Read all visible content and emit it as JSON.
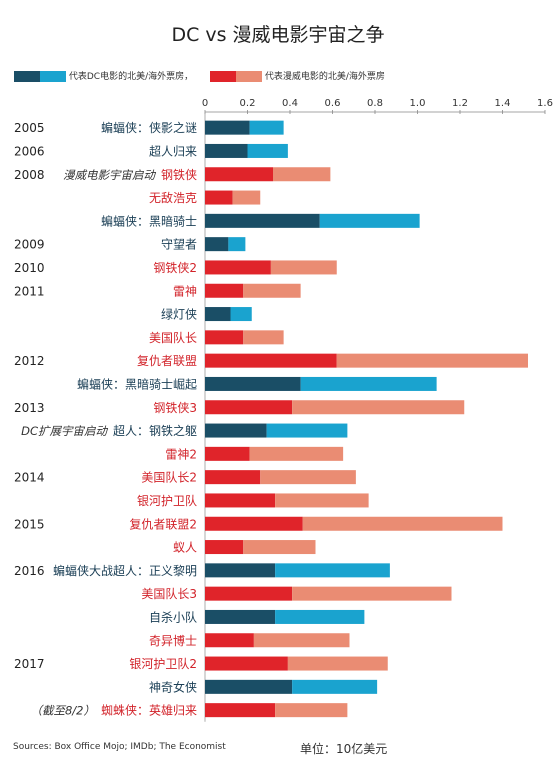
{
  "chart_data": {
    "type": "bar",
    "title": "DC vs 漫威电影宇宙之争",
    "unit": "单位：10亿美元",
    "source": "Sources: Box Office Mojo; IMDb; The Economist",
    "xlim": [
      0,
      1.6
    ],
    "xticks": [
      "0",
      "0.2",
      "0.4",
      "0.6",
      "0.8",
      "1.0",
      "1.2",
      "1.4",
      "1.6"
    ],
    "legend": [
      {
        "label": "代表DC电影的北美/海外票房，",
        "colors": [
          "#1a4e66",
          "#1aa3cf"
        ]
      },
      {
        "label": "代表漫威电影的北美/海外票房",
        "colors": [
          "#e0242a",
          "#ea8c73"
        ]
      }
    ],
    "colors": {
      "dc_domestic": "#1a4e66",
      "dc_overseas": "#1aa3cf",
      "marvel_domestic": "#e0242a",
      "marvel_overseas": "#ea8c73"
    },
    "series_names": [
      "北美",
      "海外"
    ],
    "rows": [
      {
        "year": "2005",
        "note": "",
        "label": "蝙蝠侠：侠影之谜",
        "studio": "dc",
        "domestic": 0.21,
        "overseas": 0.16
      },
      {
        "year": "2006",
        "note": "",
        "label": "超人归来",
        "studio": "dc",
        "domestic": 0.2,
        "overseas": 0.19
      },
      {
        "year": "2008",
        "note": "漫威电影宇宙启动",
        "label": "钢铁侠",
        "studio": "marvel",
        "domestic": 0.32,
        "overseas": 0.27
      },
      {
        "year": "",
        "note": "",
        "label": "无敌浩克",
        "studio": "marvel",
        "domestic": 0.13,
        "overseas": 0.13
      },
      {
        "year": "",
        "note": "",
        "label": "蝙蝠侠：黑暗骑士",
        "studio": "dc",
        "domestic": 0.54,
        "overseas": 0.47
      },
      {
        "year": "2009",
        "note": "",
        "label": "守望者",
        "studio": "dc",
        "domestic": 0.11,
        "overseas": 0.08
      },
      {
        "year": "2010",
        "note": "",
        "label": "钢铁侠2",
        "studio": "marvel",
        "domestic": 0.31,
        "overseas": 0.31
      },
      {
        "year": "2011",
        "note": "",
        "label": "雷神",
        "studio": "marvel",
        "domestic": 0.18,
        "overseas": 0.27
      },
      {
        "year": "",
        "note": "",
        "label": "绿灯侠",
        "studio": "dc",
        "domestic": 0.12,
        "overseas": 0.1
      },
      {
        "year": "",
        "note": "",
        "label": "美国队长",
        "studio": "marvel",
        "domestic": 0.18,
        "overseas": 0.19
      },
      {
        "year": "2012",
        "note": "",
        "label": "复仇者联盟",
        "studio": "marvel",
        "domestic": 0.62,
        "overseas": 0.9
      },
      {
        "year": "",
        "note": "",
        "label": "蝙蝠侠：黑暗骑士崛起",
        "studio": "dc",
        "domestic": 0.45,
        "overseas": 0.64
      },
      {
        "year": "2013",
        "note": "",
        "label": "钢铁侠3",
        "studio": "marvel",
        "domestic": 0.41,
        "overseas": 0.81
      },
      {
        "year": "",
        "note": "DC扩展宇宙启动",
        "label": "超人：钢铁之躯",
        "studio": "dc",
        "domestic": 0.29,
        "overseas": 0.38
      },
      {
        "year": "",
        "note": "",
        "label": "雷神2",
        "studio": "marvel",
        "domestic": 0.21,
        "overseas": 0.44
      },
      {
        "year": "2014",
        "note": "",
        "label": "美国队长2",
        "studio": "marvel",
        "domestic": 0.26,
        "overseas": 0.45
      },
      {
        "year": "",
        "note": "",
        "label": "银河护卫队",
        "studio": "marvel",
        "domestic": 0.33,
        "overseas": 0.44
      },
      {
        "year": "2015",
        "note": "",
        "label": "复仇者联盟2",
        "studio": "marvel",
        "domestic": 0.46,
        "overseas": 0.94
      },
      {
        "year": "",
        "note": "",
        "label": "蚁人",
        "studio": "marvel",
        "domestic": 0.18,
        "overseas": 0.34
      },
      {
        "year": "2016",
        "note": "",
        "label": "蝙蝠侠大战超人：正义黎明",
        "studio": "dc",
        "domestic": 0.33,
        "overseas": 0.54
      },
      {
        "year": "",
        "note": "",
        "label": "美国队长3",
        "studio": "marvel",
        "domestic": 0.41,
        "overseas": 0.75
      },
      {
        "year": "",
        "note": "",
        "label": "自杀小队",
        "studio": "dc",
        "domestic": 0.33,
        "overseas": 0.42
      },
      {
        "year": "",
        "note": "",
        "label": "奇异博士",
        "studio": "marvel",
        "domestic": 0.23,
        "overseas": 0.45
      },
      {
        "year": "2017",
        "note": "",
        "label": "银河护卫队2",
        "studio": "marvel",
        "domestic": 0.39,
        "overseas": 0.47
      },
      {
        "year": "",
        "note": "",
        "label": "神奇女侠",
        "studio": "dc",
        "domestic": 0.41,
        "overseas": 0.4
      },
      {
        "year": "",
        "note": "（截至8/2）",
        "label": "蜘蛛侠：英雄归来",
        "studio": "marvel",
        "domestic": 0.33,
        "overseas": 0.34
      }
    ]
  }
}
